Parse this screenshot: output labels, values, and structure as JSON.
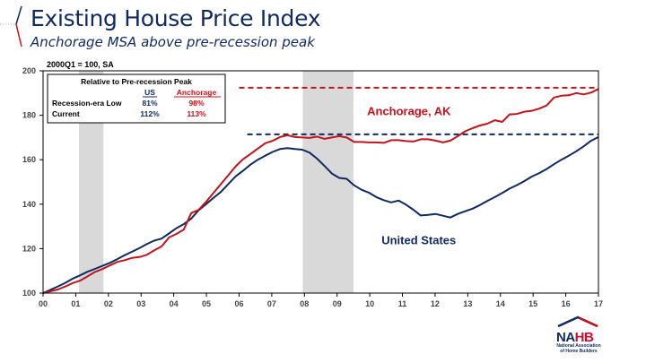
{
  "header": {
    "title": "Existing House Price Index",
    "subtitle": "Anchorage MSA above pre-recession peak"
  },
  "logo": {
    "name_na": "NA",
    "name_hb": "HB",
    "line1": "National Association",
    "line2": "of Home Builders"
  },
  "inset_table": {
    "title": "Relative to Pre-recession Peak",
    "columns": [
      "US",
      "Anchorage"
    ],
    "rows": [
      {
        "label": "Recession-era Low",
        "us": "81%",
        "anchorage": "98%"
      },
      {
        "label": "Current",
        "us": "112%",
        "anchorage": "113%"
      }
    ]
  },
  "colors": {
    "us": "#102a5e",
    "anchorage": "#c0141e",
    "recession": "#d9d9d9"
  },
  "chart_data": {
    "type": "line",
    "title": "Existing House Price Index",
    "subtitle": "Anchorage MSA above pre-recession peak",
    "unit_note": "2000Q1 = 100, SA",
    "xlabel": "",
    "ylabel": "",
    "ylim": [
      100,
      200
    ],
    "yticks": [
      100,
      120,
      140,
      160,
      180,
      200
    ],
    "xlim": [
      2000,
      2017
    ],
    "xtick_labels": [
      "00",
      "01",
      "02",
      "03",
      "04",
      "05",
      "06",
      "07",
      "08",
      "09",
      "10",
      "11",
      "12",
      "13",
      "14",
      "15",
      "16",
      "17"
    ],
    "grid": false,
    "x_start": 2000.0,
    "x_step_years": 0.25,
    "series": [
      {
        "name": "United States",
        "label_text": "United States",
        "color": "#102a5e",
        "values": [
          100.0,
          101.5,
          103.0,
          104.6,
          106.5,
          108.0,
          109.6,
          110.9,
          112.2,
          113.6,
          115.2,
          117.0,
          118.6,
          120.2,
          122.0,
          123.6,
          124.5,
          126.8,
          129.2,
          131.0,
          133.5,
          137.2,
          140.0,
          142.8,
          145.5,
          149.0,
          152.5,
          155.0,
          157.8,
          160.0,
          161.8,
          163.5,
          164.8,
          165.2,
          164.8,
          164.5,
          163.2,
          160.5,
          157.2,
          153.8,
          151.8,
          151.4,
          148.5,
          146.5,
          145.2,
          143.2,
          141.8,
          140.8,
          141.6,
          139.8,
          137.5,
          134.9,
          135.2,
          135.6,
          134.8,
          134.0,
          135.6,
          136.8,
          138.0,
          139.6,
          141.5,
          143.2,
          145.0,
          147.0,
          148.6,
          150.4,
          152.4,
          154.0,
          155.8,
          158.0,
          160.0,
          161.8,
          163.8,
          166.0,
          168.5,
          170.2
        ]
      },
      {
        "name": "Anchorage, AK",
        "label_text": "Anchorage, AK",
        "color": "#c0141e",
        "values": [
          100.0,
          100.8,
          101.6,
          103.0,
          104.5,
          105.6,
          107.5,
          109.5,
          110.8,
          112.4,
          114.0,
          114.8,
          115.8,
          116.2,
          117.2,
          119.2,
          121.0,
          125.0,
          126.6,
          128.6,
          136.0,
          137.4,
          141.0,
          145.0,
          149.0,
          153.0,
          157.0,
          160.2,
          162.6,
          165.0,
          167.4,
          168.5,
          170.2,
          171.0,
          170.2,
          170.0,
          169.8,
          170.4,
          169.4,
          170.0,
          170.6,
          170.0,
          168.0,
          168.0,
          167.8,
          167.8,
          167.6,
          168.8,
          168.8,
          168.4,
          168.2,
          169.2,
          169.2,
          168.6,
          167.8,
          168.6,
          170.6,
          172.8,
          174.2,
          175.4,
          176.2,
          177.8,
          177.0,
          180.4,
          180.6,
          181.6,
          182.0,
          183.0,
          184.4,
          188.0,
          188.8,
          189.0,
          190.0,
          189.4,
          190.2,
          191.8
        ]
      }
    ],
    "reference_lines": [
      {
        "name": "US pre-recession peak",
        "value": 171.4,
        "start": 2006.25,
        "color": "#102a5e",
        "style": "dashed"
      },
      {
        "name": "Anchorage pre-recession peak",
        "value": 192.4,
        "start": 2006.0,
        "color": "#c0141e",
        "style": "dashed"
      }
    ],
    "recessions": [
      {
        "start": 2001.1,
        "end": 2001.85
      },
      {
        "start": 2007.95,
        "end": 2009.5
      }
    ],
    "annotations": [
      {
        "text": "Anchorage, AK",
        "x": 2011.2,
        "y": 180,
        "color": "#c0141e"
      },
      {
        "text": "United States",
        "x": 2011.5,
        "y": 122,
        "color": "#102a5e"
      }
    ]
  }
}
